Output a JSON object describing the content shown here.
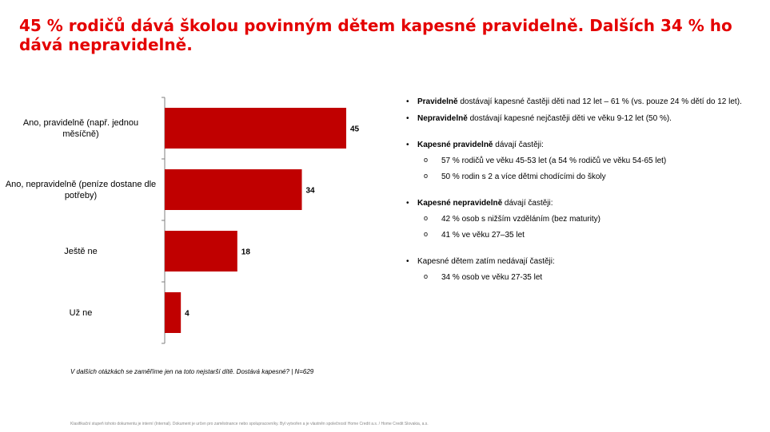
{
  "title": "45 % rodičů dává školou povinným dětem kapesné pravidelně. Dalších 34 % ho dává nepravidelně.",
  "chart_data": {
    "type": "bar",
    "orientation": "horizontal",
    "categories": [
      "Ano, pravidelně (např. jednou měsíčně)",
      "Ano, nepravidelně (peníze dostane dle potřeby)",
      "Ještě ne",
      "Už ne"
    ],
    "values": [
      45,
      34,
      18,
      4
    ],
    "value_labels": [
      "45",
      "34",
      "18",
      "4"
    ],
    "xlim": [
      0,
      50
    ],
    "grid": false,
    "bar_color": "#c00000"
  },
  "footnote": "V dalších otázkách se zaměříme jen na toto nejstarší dítě. Dostává kapesné?   | N=629",
  "notes": {
    "n1_bold": "Pravidelně",
    "n1_rest": " dostávají kapesné častěji děti nad 12 let – 61 % (vs. pouze 24 % dětí do 12 let).",
    "n2_bold": "Nepravidelně",
    "n2_rest": " dostávají kapesné nejčastěji děti ve věku 9-12 let (50 %).",
    "n3_bold": "Kapesné pravidelně",
    "n3_rest": " dávají častěji:",
    "n3_subs": [
      "57 % rodičů  ve věku 45-53 let (a 54 % rodičů ve věku 54-65 let)",
      "50 % rodin s 2 a více dětmi chodícími do školy"
    ],
    "n4_bold": "Kapesné nepravidelně",
    "n4_rest": " dávají častěji:",
    "n4_subs": [
      "42 % osob s nižším vzděláním (bez maturity)",
      "41 % ve věku 27–35 let"
    ],
    "n5_text": "Kapesné dětem zatím nedávají častěji:",
    "n5_subs": [
      "34 % osob ve věku 27-35 let"
    ]
  },
  "disclaimer": "Klasifikační stupeň tohoto dokumentu je interní (Internal). Dokument je určen pro zaměstnance nebo spolupracovníky. Byl vytvořen a je vlastněn společností Home Credit a.s. / Home Credit Slovakia, a.s."
}
